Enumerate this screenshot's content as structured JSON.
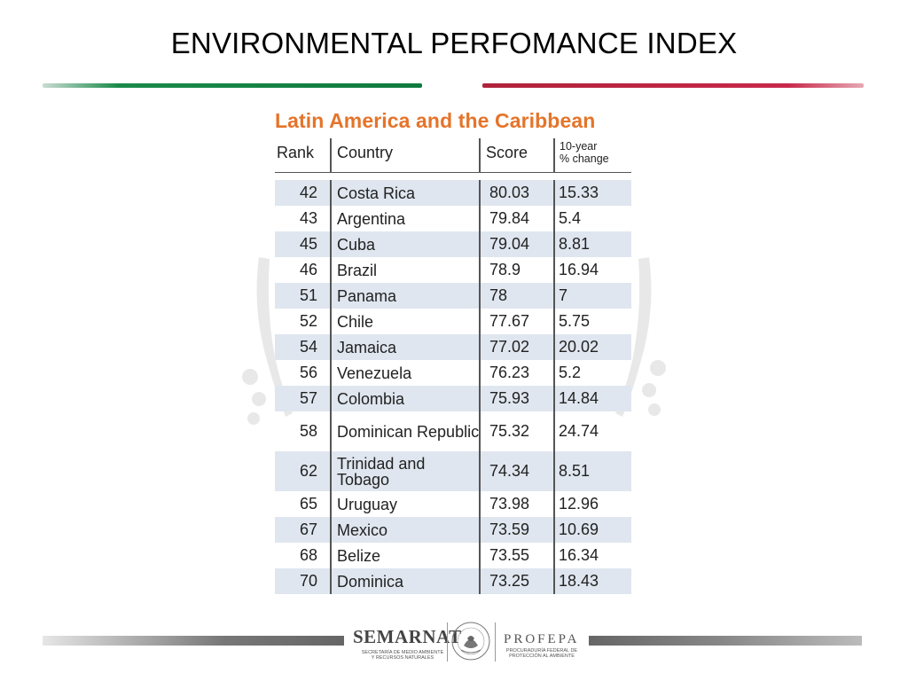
{
  "slide": {
    "title": "ENVIRONMENTAL PERFOMANCE INDEX",
    "accent_green": "#0f7a3e",
    "accent_red": "#c8284a"
  },
  "table": {
    "region_title": "Latin America and the Caribbean",
    "title_color": "#e5742a",
    "headers": {
      "rank": "Rank",
      "country": "Country",
      "score": "Score",
      "change_line1": "10-year",
      "change_line2": "% change"
    },
    "rows": [
      {
        "rank": "42",
        "country": "Costa Rica",
        "score": "80.03",
        "change": "15.33"
      },
      {
        "rank": "43",
        "country": "Argentina",
        "score": "79.84",
        "change": "5.4"
      },
      {
        "rank": "45",
        "country": "Cuba",
        "score": "79.04",
        "change": "8.81"
      },
      {
        "rank": "46",
        "country": "Brazil",
        "score": "78.9",
        "change": "16.94"
      },
      {
        "rank": "51",
        "country": "Panama",
        "score": "78",
        "change": "7"
      },
      {
        "rank": "52",
        "country": "Chile",
        "score": "77.67",
        "change": "5.75"
      },
      {
        "rank": "54",
        "country": "Jamaica",
        "score": "77.02",
        "change": "20.02"
      },
      {
        "rank": "56",
        "country": "Venezuela",
        "score": "76.23",
        "change": "5.2"
      },
      {
        "rank": "57",
        "country": "Colombia",
        "score": "75.93",
        "change": "14.84"
      },
      {
        "rank": "58",
        "country": "Dominican Republic",
        "score": "75.32",
        "change": "24.74"
      },
      {
        "rank": "62",
        "country": "Trinidad and Tobago",
        "score": "74.34",
        "change": "8.51"
      },
      {
        "rank": "65",
        "country": "Uruguay",
        "score": "73.98",
        "change": "12.96"
      },
      {
        "rank": "67",
        "country": "Mexico",
        "score": "73.59",
        "change": "10.69"
      },
      {
        "rank": "68",
        "country": "Belize",
        "score": "73.55",
        "change": "16.34"
      },
      {
        "rank": "70",
        "country": "Dominica",
        "score": "73.25",
        "change": "18.43"
      }
    ]
  },
  "footer": {
    "semarnat": "SEMARNAT",
    "semarnat_sub": "SECRETARÍA DE MEDIO AMBIENTE Y RECURSOS NATURALES",
    "profepa": "PROFEPA",
    "profepa_sub": "PROCURADURÍA FEDERAL DE PROTECCIÓN AL AMBIENTE",
    "seal_icon": "mexican-coat-of-arms-icon"
  }
}
